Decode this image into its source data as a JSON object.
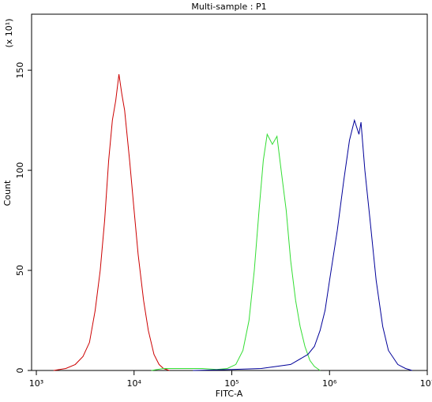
{
  "chart_data": {
    "type": "line",
    "title": "Multi-sample : P1",
    "x_label": "FITC-A",
    "y_label": "Count",
    "y_multiplier": "(x 10¹)",
    "log_x": true,
    "xlim": [
      894,
      10000000
    ],
    "xticks": [
      {
        "value": 1000,
        "label": "10³"
      },
      {
        "value": 10000,
        "label": "10⁴"
      },
      {
        "value": 100000,
        "label": "10⁵"
      },
      {
        "value": 1000000,
        "label": "10⁶"
      },
      {
        "value": 10000000,
        "label": "10⁷"
      }
    ],
    "ylim": [
      0,
      178
    ],
    "yticks": [
      0,
      50,
      100,
      150
    ],
    "series": [
      {
        "color": "#cc0000",
        "x": [
          1500,
          2000,
          2500,
          3000,
          3500,
          4000,
          4500,
          5000,
          5500,
          6000,
          6500,
          7000,
          7500,
          8000,
          9000,
          10000,
          11000,
          12500,
          14000,
          16000,
          18000,
          20000,
          23000
        ],
        "values": [
          0,
          1,
          3,
          7,
          14,
          30,
          50,
          75,
          105,
          125,
          135,
          148,
          138,
          130,
          105,
          80,
          58,
          35,
          20,
          8,
          3,
          1,
          0
        ]
      },
      {
        "color": "#33dd33",
        "x": [
          15000,
          20000,
          30000,
          50000,
          70000,
          90000,
          110000,
          130000,
          150000,
          170000,
          190000,
          210000,
          230000,
          260000,
          290000,
          320000,
          360000,
          400000,
          450000,
          500000,
          560000,
          630000,
          700000,
          800000
        ],
        "values": [
          0,
          1,
          1,
          1,
          0.5,
          1,
          3,
          10,
          25,
          50,
          80,
          105,
          118,
          113,
          117,
          100,
          80,
          55,
          35,
          22,
          12,
          5,
          2,
          0
        ]
      },
      {
        "color": "#000099",
        "x": [
          40000,
          100000,
          200000,
          400000,
          600000,
          700000,
          800000,
          900000,
          1000000,
          1200000,
          1400000,
          1600000,
          1800000,
          2000000,
          2100000,
          2300000,
          2600000,
          3000000,
          3500000,
          4000000,
          5000000,
          6000000,
          7000000
        ],
        "values": [
          0,
          0.5,
          1,
          3,
          8,
          12,
          20,
          30,
          45,
          70,
          95,
          115,
          125,
          118,
          124,
          100,
          75,
          45,
          22,
          10,
          3,
          1,
          0
        ]
      }
    ]
  }
}
